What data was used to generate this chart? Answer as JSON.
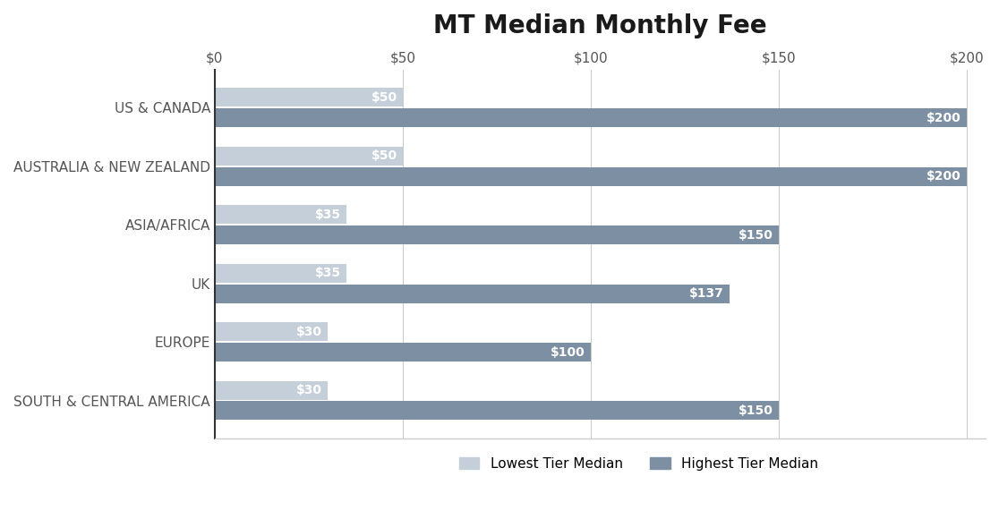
{
  "title": "MT Median Monthly Fee",
  "categories": [
    "SOUTH & CENTRAL AMERICA",
    "EUROPE",
    "UK",
    "ASIA/AFRICA",
    "AUSTRALIA & NEW ZEALAND",
    "US & CANADA"
  ],
  "lowest_tier": [
    30,
    30,
    35,
    35,
    50,
    50
  ],
  "highest_tier": [
    150,
    100,
    137,
    150,
    200,
    200
  ],
  "lowest_color": "#c5cfda",
  "highest_color": "#7d8fa3",
  "label_color": "#ffffff",
  "title_color": "#1a1a1a",
  "background_color": "#ffffff",
  "xlim": [
    0,
    205
  ],
  "xticks": [
    0,
    50,
    100,
    150,
    200
  ],
  "xticklabels": [
    "$0",
    "$50",
    "$100",
    "$150",
    "$200"
  ],
  "legend_lowest": "Lowest Tier Median",
  "legend_highest": "Highest Tier Median",
  "bar_height": 0.32,
  "bar_gap": 0.03,
  "title_fontsize": 20,
  "label_fontsize": 10,
  "tick_fontsize": 11,
  "legend_fontsize": 11,
  "axis_label_color": "#555555",
  "grid_color": "#cccccc",
  "spine_left_color": "#333333"
}
